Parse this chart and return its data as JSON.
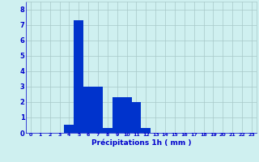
{
  "values": [
    0,
    0,
    0,
    0,
    0.5,
    7.3,
    3.0,
    3.0,
    0.3,
    2.3,
    2.3,
    2.0,
    0.3,
    0,
    0,
    0,
    0,
    0,
    0,
    0,
    0,
    0,
    0,
    0
  ],
  "bar_color": "#0033cc",
  "background_color": "#cff0f0",
  "grid_color": "#a8c8c8",
  "xlabel": "Précipitations 1h ( mm )",
  "xlabel_color": "#0000cc",
  "tick_color": "#0000cc",
  "ylim": [
    0,
    8.5
  ],
  "yticks": [
    0,
    1,
    2,
    3,
    4,
    5,
    6,
    7,
    8
  ],
  "num_bars": 24
}
